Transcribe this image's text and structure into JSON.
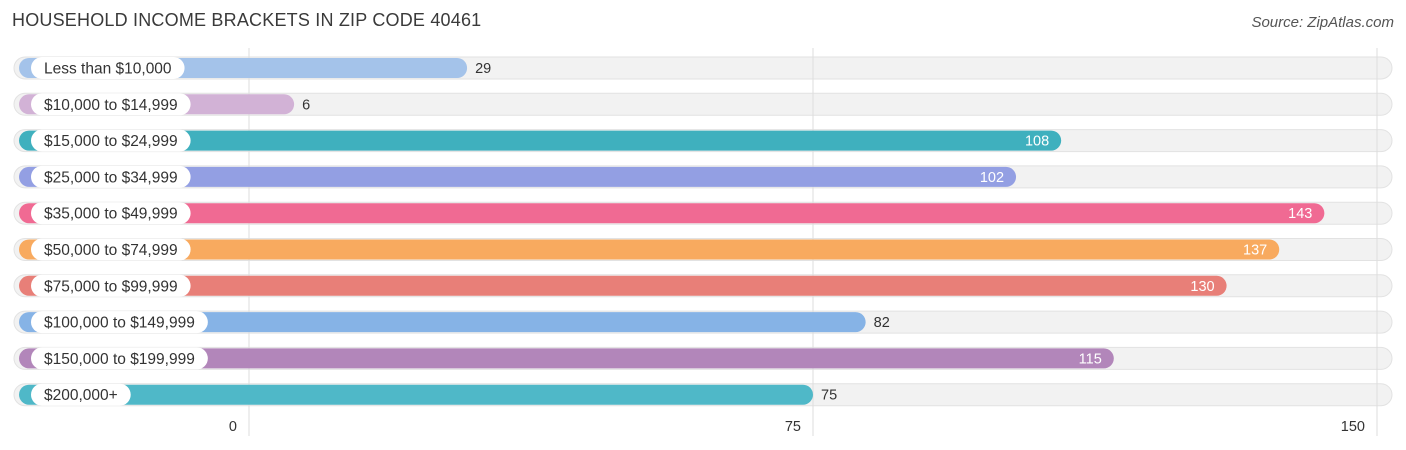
{
  "title": "HOUSEHOLD INCOME BRACKETS IN ZIP CODE 40461",
  "source": "Source: ZipAtlas.com",
  "chart_data": {
    "type": "bar",
    "orientation": "horizontal",
    "title": "HOUSEHOLD INCOME BRACKETS IN ZIP CODE 40461",
    "categories": [
      "Less than $10,000",
      "$10,000 to $14,999",
      "$15,000 to $24,999",
      "$25,000 to $34,999",
      "$35,000 to $49,999",
      "$50,000 to $74,999",
      "$75,000 to $99,999",
      "$100,000 to $149,999",
      "$150,000 to $199,999",
      "$200,000+"
    ],
    "values": [
      29,
      6,
      108,
      102,
      143,
      137,
      130,
      82,
      115,
      75
    ],
    "colors": [
      "#a4c3ea",
      "#d2b2d6",
      "#3fb0be",
      "#939fe3",
      "#f06a93",
      "#f8aa5f",
      "#e87f78",
      "#86b3e6",
      "#b286ba",
      "#4fb8c8"
    ],
    "xlim": [
      0,
      150
    ],
    "xticks": [
      0,
      75,
      150
    ],
    "grid": true,
    "value_label_inside_threshold": 100
  }
}
